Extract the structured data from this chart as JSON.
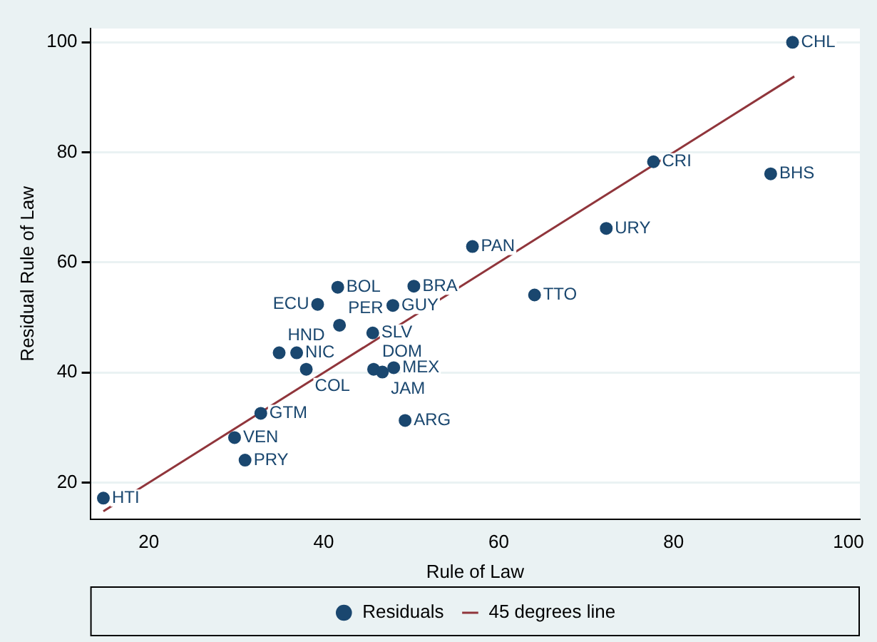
{
  "chart_data": {
    "type": "scatter",
    "xlabel": "Rule of Law",
    "ylabel": "Residual Rule of Law",
    "xlim": [
      13.3,
      101.3
    ],
    "ylim": [
      13.4,
      102.5
    ],
    "xticks": [
      20,
      40,
      60,
      80,
      100
    ],
    "yticks": [
      20,
      40,
      60,
      80,
      100
    ],
    "grid": "y",
    "legend": "bottom",
    "marker": "circle",
    "series": [
      {
        "name": "Residuals",
        "color": "#1a476f",
        "x": [
          93.6,
          77.7,
          91.1,
          72.3,
          57.0,
          64.1,
          50.3,
          41.6,
          39.3,
          47.9,
          41.8,
          45.6,
          34.9,
          36.9,
          38.0,
          45.7,
          46.7,
          48.0,
          32.8,
          49.3,
          29.8,
          31.0,
          14.8
        ],
        "values": [
          100.0,
          78.3,
          76.1,
          66.2,
          62.9,
          54.1,
          55.7,
          55.5,
          52.4,
          52.2,
          48.6,
          47.2,
          43.6,
          43.6,
          40.6,
          40.6,
          40.1,
          40.9,
          32.6,
          31.3,
          28.2,
          24.1,
          17.2
        ],
        "value_labels": [
          "CHL",
          "CRI",
          "BHS",
          "URY",
          "PAN",
          "TTO",
          "BRA",
          "BOL",
          "ECU",
          "GUY",
          "PER",
          "SLV",
          "HND",
          "NIC",
          "COL",
          "DOM",
          "JAM",
          "MEX",
          "GTM",
          "ARG",
          "VEN",
          "PRY",
          "HTI"
        ]
      },
      {
        "name": "45 degrees line",
        "type": "line",
        "color": "#90353b",
        "marker": "none",
        "x": [
          14.8,
          93.8
        ],
        "values": [
          14.8,
          93.8
        ]
      }
    ]
  }
}
